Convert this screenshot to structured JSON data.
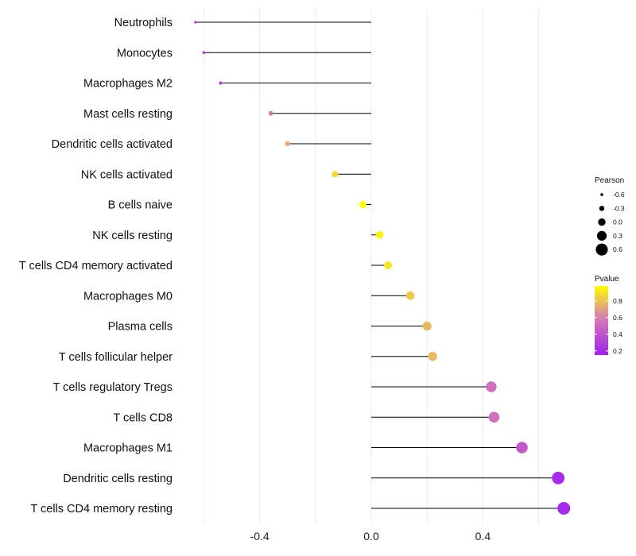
{
  "chart_data": {
    "type": "lollipop",
    "title": "",
    "xlabel": "",
    "ylabel": "",
    "xlim": [
      -0.64,
      0.73
    ],
    "x_ticks": [
      -0.4,
      0.0,
      0.4
    ],
    "x_tick_labels": [
      "-0.4",
      "0.0",
      "0.4"
    ],
    "categories": [
      "Neutrophils",
      "Monocytes",
      "Macrophages M2",
      "Mast cells resting",
      "Dendritic cells activated",
      "NK cells activated",
      "B cells naive",
      "NK cells resting",
      "T cells CD4 memory activated",
      "Macrophages M0",
      "Plasma cells",
      "T cells follicular helper",
      "T cells regulatory  Tregs ",
      "T cells CD8",
      "Macrophages M1",
      "Dendritic cells resting",
      "T cells CD4 memory resting"
    ],
    "pearson": [
      -0.63,
      -0.6,
      -0.54,
      -0.36,
      -0.3,
      -0.13,
      -0.03,
      0.03,
      0.06,
      0.14,
      0.2,
      0.22,
      0.43,
      0.44,
      0.54,
      0.67,
      0.69
    ],
    "pvalue": [
      0.25,
      0.25,
      0.3,
      0.55,
      0.7,
      0.85,
      0.98,
      0.95,
      0.9,
      0.8,
      0.75,
      0.75,
      0.5,
      0.5,
      0.4,
      0.2,
      0.2
    ],
    "size_legend": {
      "title": "Pearson",
      "values": [
        -0.6,
        -0.3,
        0.0,
        0.3,
        0.6
      ],
      "labels": [
        "-0.6",
        "-0.3",
        "0.0",
        "0.3",
        "0.6"
      ]
    },
    "color_legend": {
      "title": "Pvalue",
      "range": [
        0.15,
        0.98
      ],
      "ticks": [
        0.2,
        0.4,
        0.6,
        0.8
      ],
      "labels": [
        "0.2",
        "0.4",
        "0.6",
        "0.8"
      ],
      "low_color": "#a020f0",
      "mid_color": "#d87fb0",
      "high_color": "#ffff00"
    },
    "stem_color": "#000000",
    "grid": true
  }
}
